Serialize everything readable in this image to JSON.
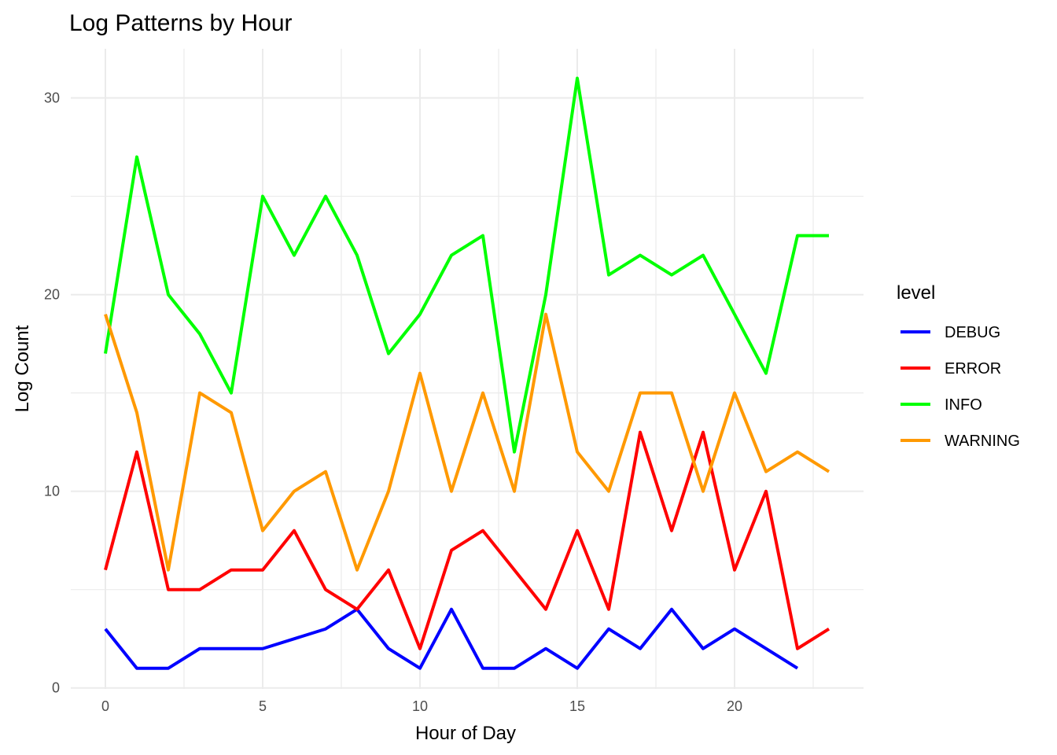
{
  "chart_data": {
    "type": "line",
    "title": "Log Patterns by Hour",
    "xlabel": "Hour of Day",
    "ylabel": "Log Count",
    "xlim": [
      -1.1,
      24.1
    ],
    "ylim": [
      -0.05,
      32.5
    ],
    "x_ticks": [
      0,
      5,
      10,
      15,
      20
    ],
    "x_minor_ticks": [
      2.5,
      7.5,
      12.5,
      17.5,
      22.5
    ],
    "y_ticks": [
      0,
      10,
      20,
      30
    ],
    "y_minor_ticks": [
      5,
      15,
      25
    ],
    "grid": true,
    "legend_title": "level",
    "legend_position": "right",
    "series": [
      {
        "name": "DEBUG",
        "color": "#0000FF",
        "x": [
          0,
          1,
          2,
          3,
          4,
          5,
          7,
          8,
          9,
          10,
          11,
          12,
          13,
          14,
          15,
          16,
          17,
          18,
          19,
          20,
          22
        ],
        "y": [
          3,
          1,
          1,
          2,
          2,
          2,
          3,
          4,
          2,
          1,
          4,
          1,
          1,
          2,
          1,
          3,
          2,
          4,
          2,
          3,
          1
        ]
      },
      {
        "name": "ERROR",
        "color": "#FF0000",
        "x": [
          0,
          1,
          2,
          3,
          4,
          5,
          6,
          7,
          8,
          9,
          10,
          11,
          12,
          14,
          15,
          16,
          17,
          18,
          19,
          20,
          21,
          22,
          23
        ],
        "y": [
          6,
          12,
          5,
          5,
          6,
          6,
          8,
          5,
          4,
          6,
          2,
          7,
          8,
          4,
          8,
          4,
          13,
          8,
          13,
          6,
          10,
          2,
          3
        ]
      },
      {
        "name": "INFO",
        "color": "#00FF00",
        "x": [
          0,
          1,
          2,
          3,
          4,
          5,
          6,
          7,
          8,
          9,
          10,
          11,
          12,
          13,
          14,
          15,
          16,
          17,
          18,
          19,
          21,
          22,
          23
        ],
        "y": [
          17,
          27,
          20,
          18,
          15,
          25,
          22,
          25,
          22,
          17,
          19,
          22,
          23,
          12,
          20,
          31,
          21,
          22,
          21,
          22,
          16,
          23,
          23
        ]
      },
      {
        "name": "WARNING",
        "color": "#FF9900",
        "x": [
          0,
          1,
          2,
          3,
          4,
          5,
          6,
          7,
          8,
          9,
          10,
          11,
          12,
          13,
          14,
          15,
          16,
          17,
          18,
          19,
          20,
          21,
          22,
          23
        ],
        "y": [
          19,
          14,
          6,
          15,
          14,
          8,
          10,
          11,
          6,
          10,
          16,
          10,
          15,
          10,
          19,
          12,
          10,
          15,
          15,
          10,
          15,
          11,
          12,
          11
        ]
      }
    ]
  }
}
